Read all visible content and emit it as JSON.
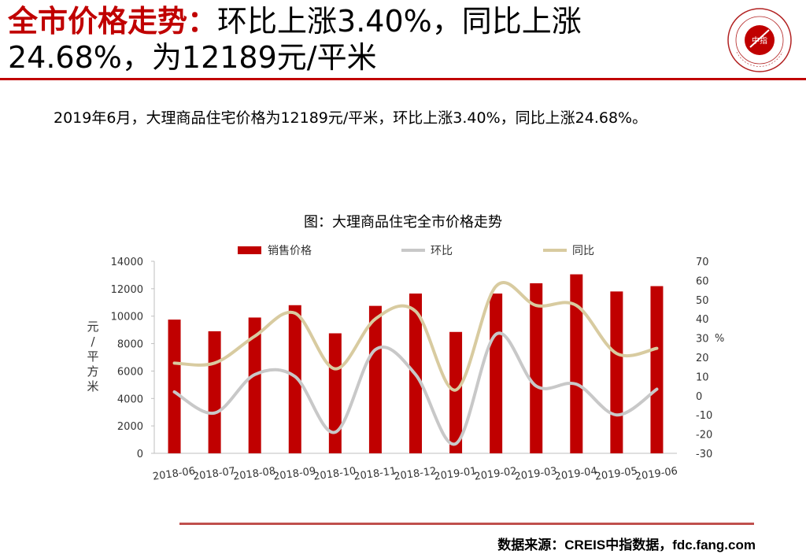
{
  "header": {
    "headline_red": "全市价格走势：",
    "headline_rest": "环比上涨3.40%，同比上涨24.68%，为12189元/平米"
  },
  "logo": {
    "center_text": "中指",
    "ring_text": "CHINA INDEX ACADEMY"
  },
  "summary": "2019年6月，大理商品住宅价格为12189元/平米，环比上涨3.40%，同比上涨24.68%。",
  "source": "数据来源：CREIS中指数据，fdc.fang.com",
  "colors": {
    "accent_red": "#c00000",
    "bar_red": "#c00000",
    "mom_gray": "#c8c8c8",
    "yoy_tan": "#d8cba0",
    "rule_red": "#c0504d"
  },
  "chart_data": {
    "type": "bar",
    "title": "图：大理商品住宅全市价格走势",
    "categories": [
      "2018-06",
      "2018-07",
      "2018-08",
      "2018-09",
      "2018-10",
      "2018-11",
      "2018-12",
      "2019-01",
      "2019-02",
      "2019-03",
      "2019-04",
      "2019-05",
      "2019-06"
    ],
    "ylabel_left": "元/平方米",
    "ylabel_right": "%",
    "ylim_left": [
      0,
      14000
    ],
    "ylim_right": [
      -30,
      70
    ],
    "yticks_left": [
      "0",
      "2000",
      "4000",
      "6000",
      "8000",
      "10000",
      "12000",
      "14000"
    ],
    "yticks_right": [
      "-30",
      "-20",
      "-10",
      "0",
      "10",
      "20",
      "30",
      "40",
      "50",
      "60",
      "70"
    ],
    "legend_position": "top",
    "series": [
      {
        "name": "销售价格",
        "kind": "bar",
        "axis": "left",
        "values": [
          9750,
          8900,
          9900,
          10800,
          8750,
          10750,
          11650,
          8850,
          11650,
          12400,
          13050,
          11800,
          12189
        ]
      },
      {
        "name": "环比",
        "kind": "line",
        "axis": "right",
        "values": [
          2,
          -9,
          11,
          10,
          -19,
          24,
          11,
          -25,
          32,
          5,
          6,
          -10,
          3.4
        ]
      },
      {
        "name": "同比",
        "kind": "line",
        "axis": "right",
        "values": [
          17,
          17,
          31,
          43,
          14,
          40,
          44,
          3,
          57,
          47,
          47,
          22,
          24.68
        ]
      }
    ]
  }
}
